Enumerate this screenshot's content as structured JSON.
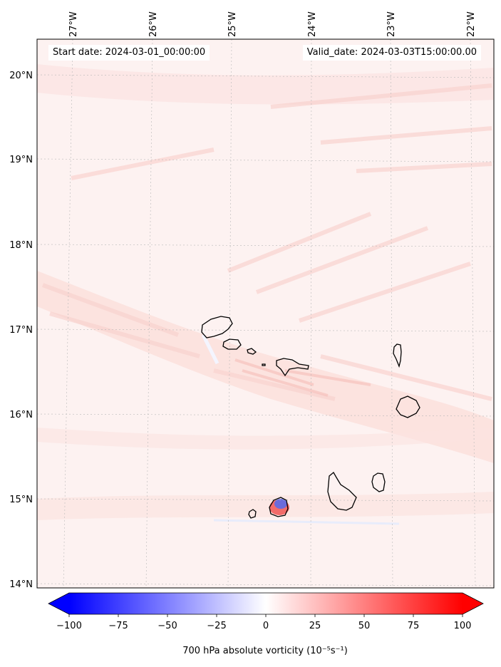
{
  "header": {
    "start_date": "Start date: 2024-03-01_00:00:00",
    "valid_date": "Valid_date: 2024-03-03T15:00:00.00"
  },
  "map": {
    "lon_labels": [
      "27°W",
      "26°W",
      "25°W",
      "24°W",
      "23°W",
      "22°W"
    ],
    "lat_labels": [
      "20°N",
      "19°N",
      "18°N",
      "17°N",
      "16°N",
      "15°N",
      "14°N"
    ],
    "background_color": "#fdf1f0",
    "band_color": "#fbdcd9",
    "coastline_color": "#000000",
    "gridline_style": "dotted-gray",
    "islands": [
      "santo-antao",
      "sao-vicente",
      "santa-luzia",
      "branco",
      "sao-nicolau",
      "sal",
      "boa-vista",
      "maio",
      "santiago",
      "fogo",
      "brava"
    ]
  },
  "colorbar": {
    "ticks": [
      "−100",
      "−75",
      "−50",
      "−25",
      "0",
      "25",
      "50",
      "75",
      "100"
    ],
    "label": "700 hPa absolute vorticity (10⁻⁵s⁻¹)",
    "colormap": "bwr",
    "min_color": "#0000ff",
    "mid_color": "#ffffff",
    "max_color": "#ff0000"
  }
}
